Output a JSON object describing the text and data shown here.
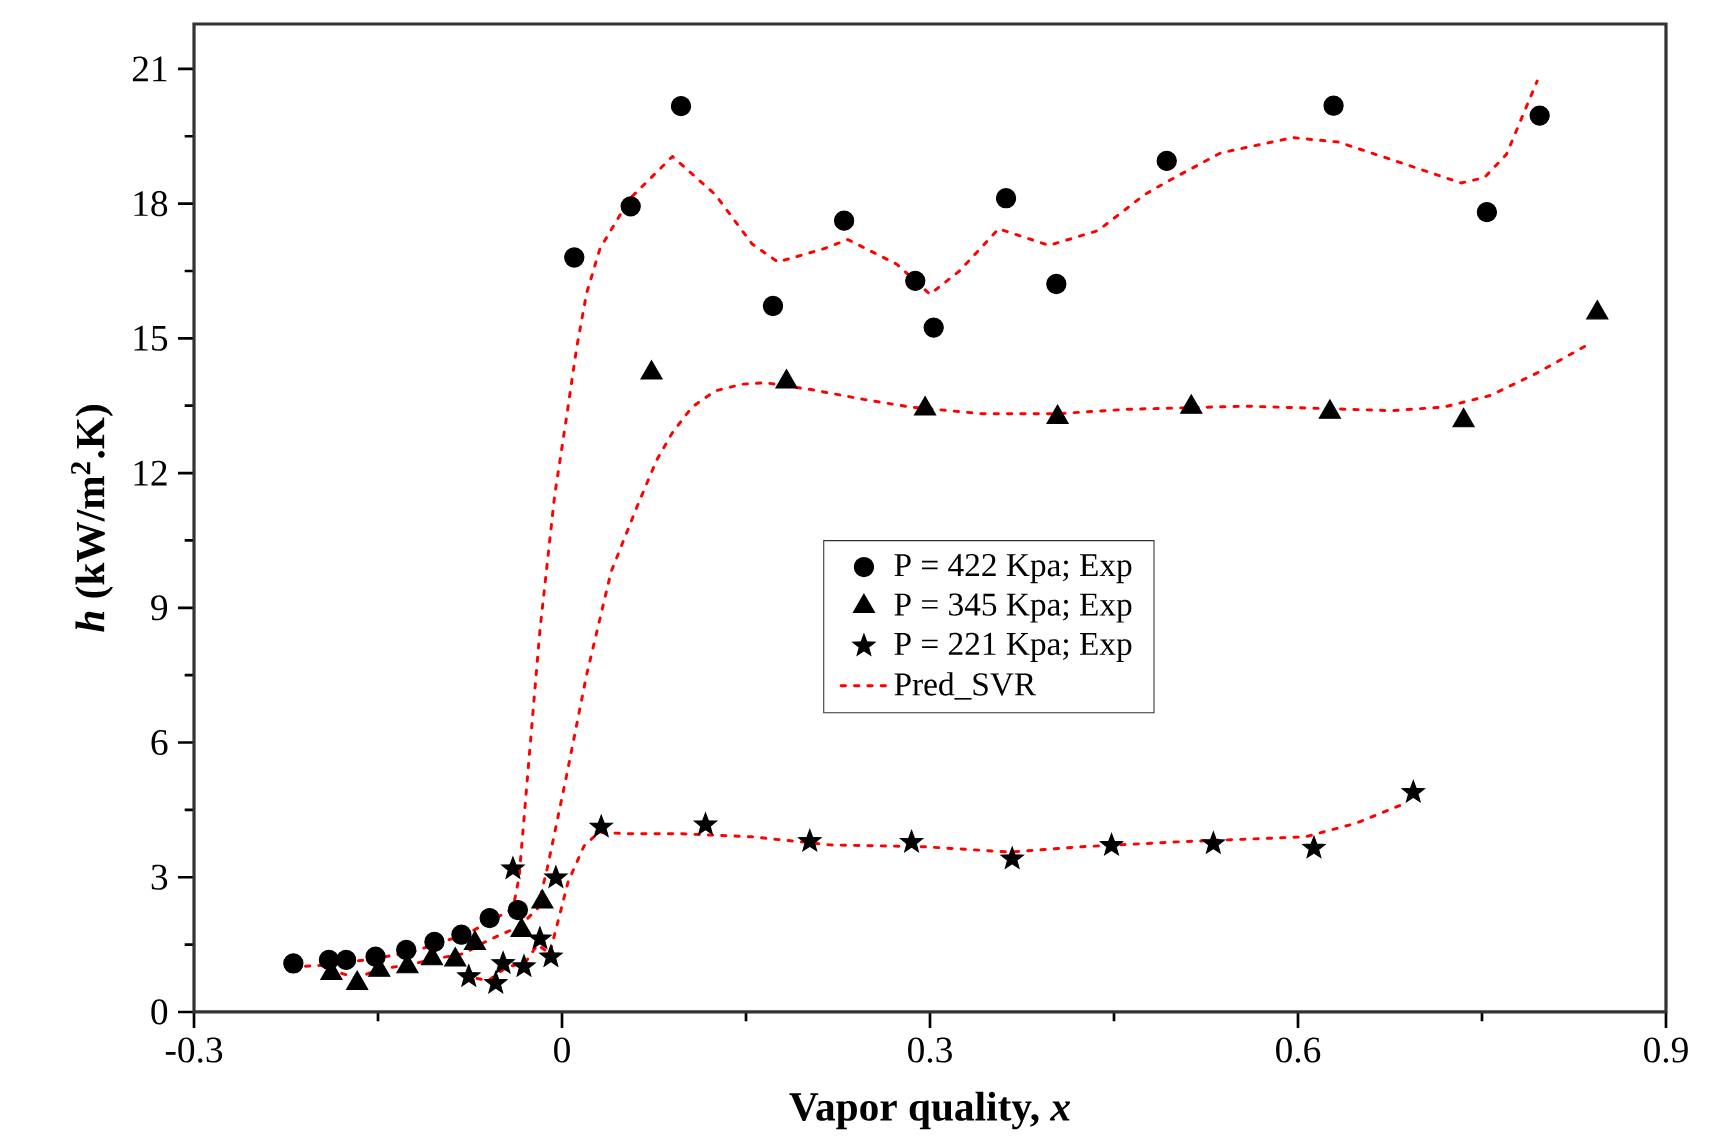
{
  "chart_data": {
    "type": "scatter",
    "xlabel": "Vapor quality, *x*",
    "ylabel": "*h* (kW/m$^{2}$.K)",
    "xlim": [
      -0.3,
      0.9
    ],
    "xticks": [
      -0.3,
      0,
      0.3,
      0.6,
      0.9
    ],
    "ylim": [
      0,
      22
    ],
    "yticks": [
      0,
      3,
      6,
      9,
      12,
      15,
      18,
      21
    ],
    "legend": "center",
    "series": [
      {
        "name": "P = 422 Kpa; Exp",
        "marker": "circle",
        "color": "#000000",
        "x": [
          -0.219,
          -0.19,
          -0.176,
          -0.152,
          -0.127,
          -0.104,
          -0.082,
          -0.059,
          -0.036,
          0.01,
          0.056,
          0.097,
          0.172,
          0.23,
          0.288,
          0.303,
          0.362,
          0.403,
          0.493,
          0.629,
          0.754,
          0.797
        ],
        "values": [
          1.08,
          1.16,
          1.16,
          1.23,
          1.38,
          1.56,
          1.72,
          2.09,
          2.27,
          16.8,
          17.94,
          20.17,
          15.72,
          17.62,
          16.28,
          15.24,
          18.12,
          16.21,
          18.95,
          20.18,
          17.81,
          19.96
        ]
      },
      {
        "name": "P = 345 Kpa; Exp",
        "marker": "triangle",
        "color": "#000000",
        "x": [
          -0.188,
          -0.167,
          -0.149,
          -0.126,
          -0.106,
          -0.087,
          -0.071,
          -0.033,
          -0.016,
          0.073,
          0.183,
          0.296,
          0.404,
          0.513,
          0.626,
          0.735,
          0.844
        ],
        "values": [
          0.86,
          0.64,
          0.93,
          1.01,
          1.19,
          1.16,
          1.53,
          1.82,
          2.45,
          14.23,
          14.03,
          13.43,
          13.24,
          13.47,
          13.36,
          13.17,
          15.57
        ]
      },
      {
        "name": "P = 221 Kpa; Exp",
        "marker": "star",
        "color": "#000000",
        "x": [
          -0.076,
          -0.054,
          -0.048,
          -0.04,
          -0.031,
          -0.018,
          -0.009,
          -0.005,
          0.032,
          0.117,
          0.202,
          0.285,
          0.367,
          0.448,
          0.531,
          0.613,
          0.694
        ],
        "values": [
          0.79,
          0.64,
          1.08,
          3.19,
          1.01,
          1.63,
          1.23,
          2.99,
          4.12,
          4.17,
          3.8,
          3.78,
          3.41,
          3.71,
          3.75,
          3.65,
          4.89
        ]
      },
      {
        "name": "Pred_SVR",
        "type": "line",
        "marker": "none",
        "line_style": "dotted",
        "color": "#ff0000",
        "x": [
          -0.22,
          -0.19,
          -0.15,
          -0.12,
          -0.1,
          -0.08,
          -0.06,
          -0.04,
          -0.035,
          -0.027,
          -0.018,
          -0.006,
          0.004,
          0.012,
          0.02,
          0.031,
          0.055,
          0.09,
          0.125,
          0.155,
          0.176,
          0.214,
          0.233,
          0.273,
          0.3,
          0.324,
          0.356,
          0.397,
          0.437,
          0.475,
          0.494,
          0.537,
          0.596,
          0.633,
          0.674,
          0.733,
          0.752,
          0.77,
          0.795
        ],
        "values": [
          1.0,
          1.05,
          1.2,
          1.35,
          1.55,
          1.7,
          2.0,
          2.3,
          3.0,
          5.6,
          8.5,
          11.5,
          13.3,
          14.8,
          16.0,
          17.0,
          18.1,
          19.05,
          18.2,
          17.1,
          16.7,
          17.0,
          17.2,
          16.65,
          15.98,
          16.5,
          17.44,
          17.07,
          17.4,
          18.2,
          18.5,
          19.13,
          19.47,
          19.37,
          19.0,
          18.46,
          18.58,
          19.1,
          20.73
        ]
      },
      {
        "type": "line",
        "marker": "none",
        "line_style": "dotted",
        "color": "#ff0000",
        "x": [
          -0.19,
          -0.167,
          -0.15,
          -0.125,
          -0.1,
          -0.08,
          -0.06,
          -0.035,
          -0.02,
          -0.012,
          0.004,
          0.02,
          0.04,
          0.061,
          0.077,
          0.09,
          0.106,
          0.125,
          0.147,
          0.166,
          0.203,
          0.246,
          0.284,
          0.343,
          0.402,
          0.461,
          0.558,
          0.676,
          0.719,
          0.757,
          0.795,
          0.835
        ],
        "values": [
          0.95,
          0.75,
          0.95,
          1.05,
          1.2,
          1.3,
          1.6,
          1.9,
          2.3,
          3.2,
          5.3,
          7.5,
          9.8,
          11.24,
          12.28,
          12.9,
          13.47,
          13.83,
          13.98,
          14.01,
          13.86,
          13.64,
          13.47,
          13.32,
          13.32,
          13.42,
          13.49,
          13.39,
          13.47,
          13.73,
          14.23,
          14.84
        ]
      },
      {
        "type": "line",
        "marker": "none",
        "line_style": "dotted",
        "color": "#ff0000",
        "x": [
          -0.08,
          -0.06,
          -0.045,
          -0.03,
          -0.02,
          -0.01,
          0.005,
          0.018,
          0.03,
          0.053,
          0.096,
          0.155,
          0.219,
          0.295,
          0.365,
          0.424,
          0.504,
          0.606,
          0.647,
          0.687
        ],
        "values": [
          0.8,
          0.7,
          1.0,
          1.1,
          1.5,
          1.3,
          2.9,
          3.7,
          4.0,
          3.97,
          3.97,
          3.9,
          3.72,
          3.68,
          3.56,
          3.68,
          3.79,
          3.9,
          4.2,
          4.64
        ]
      }
    ]
  }
}
